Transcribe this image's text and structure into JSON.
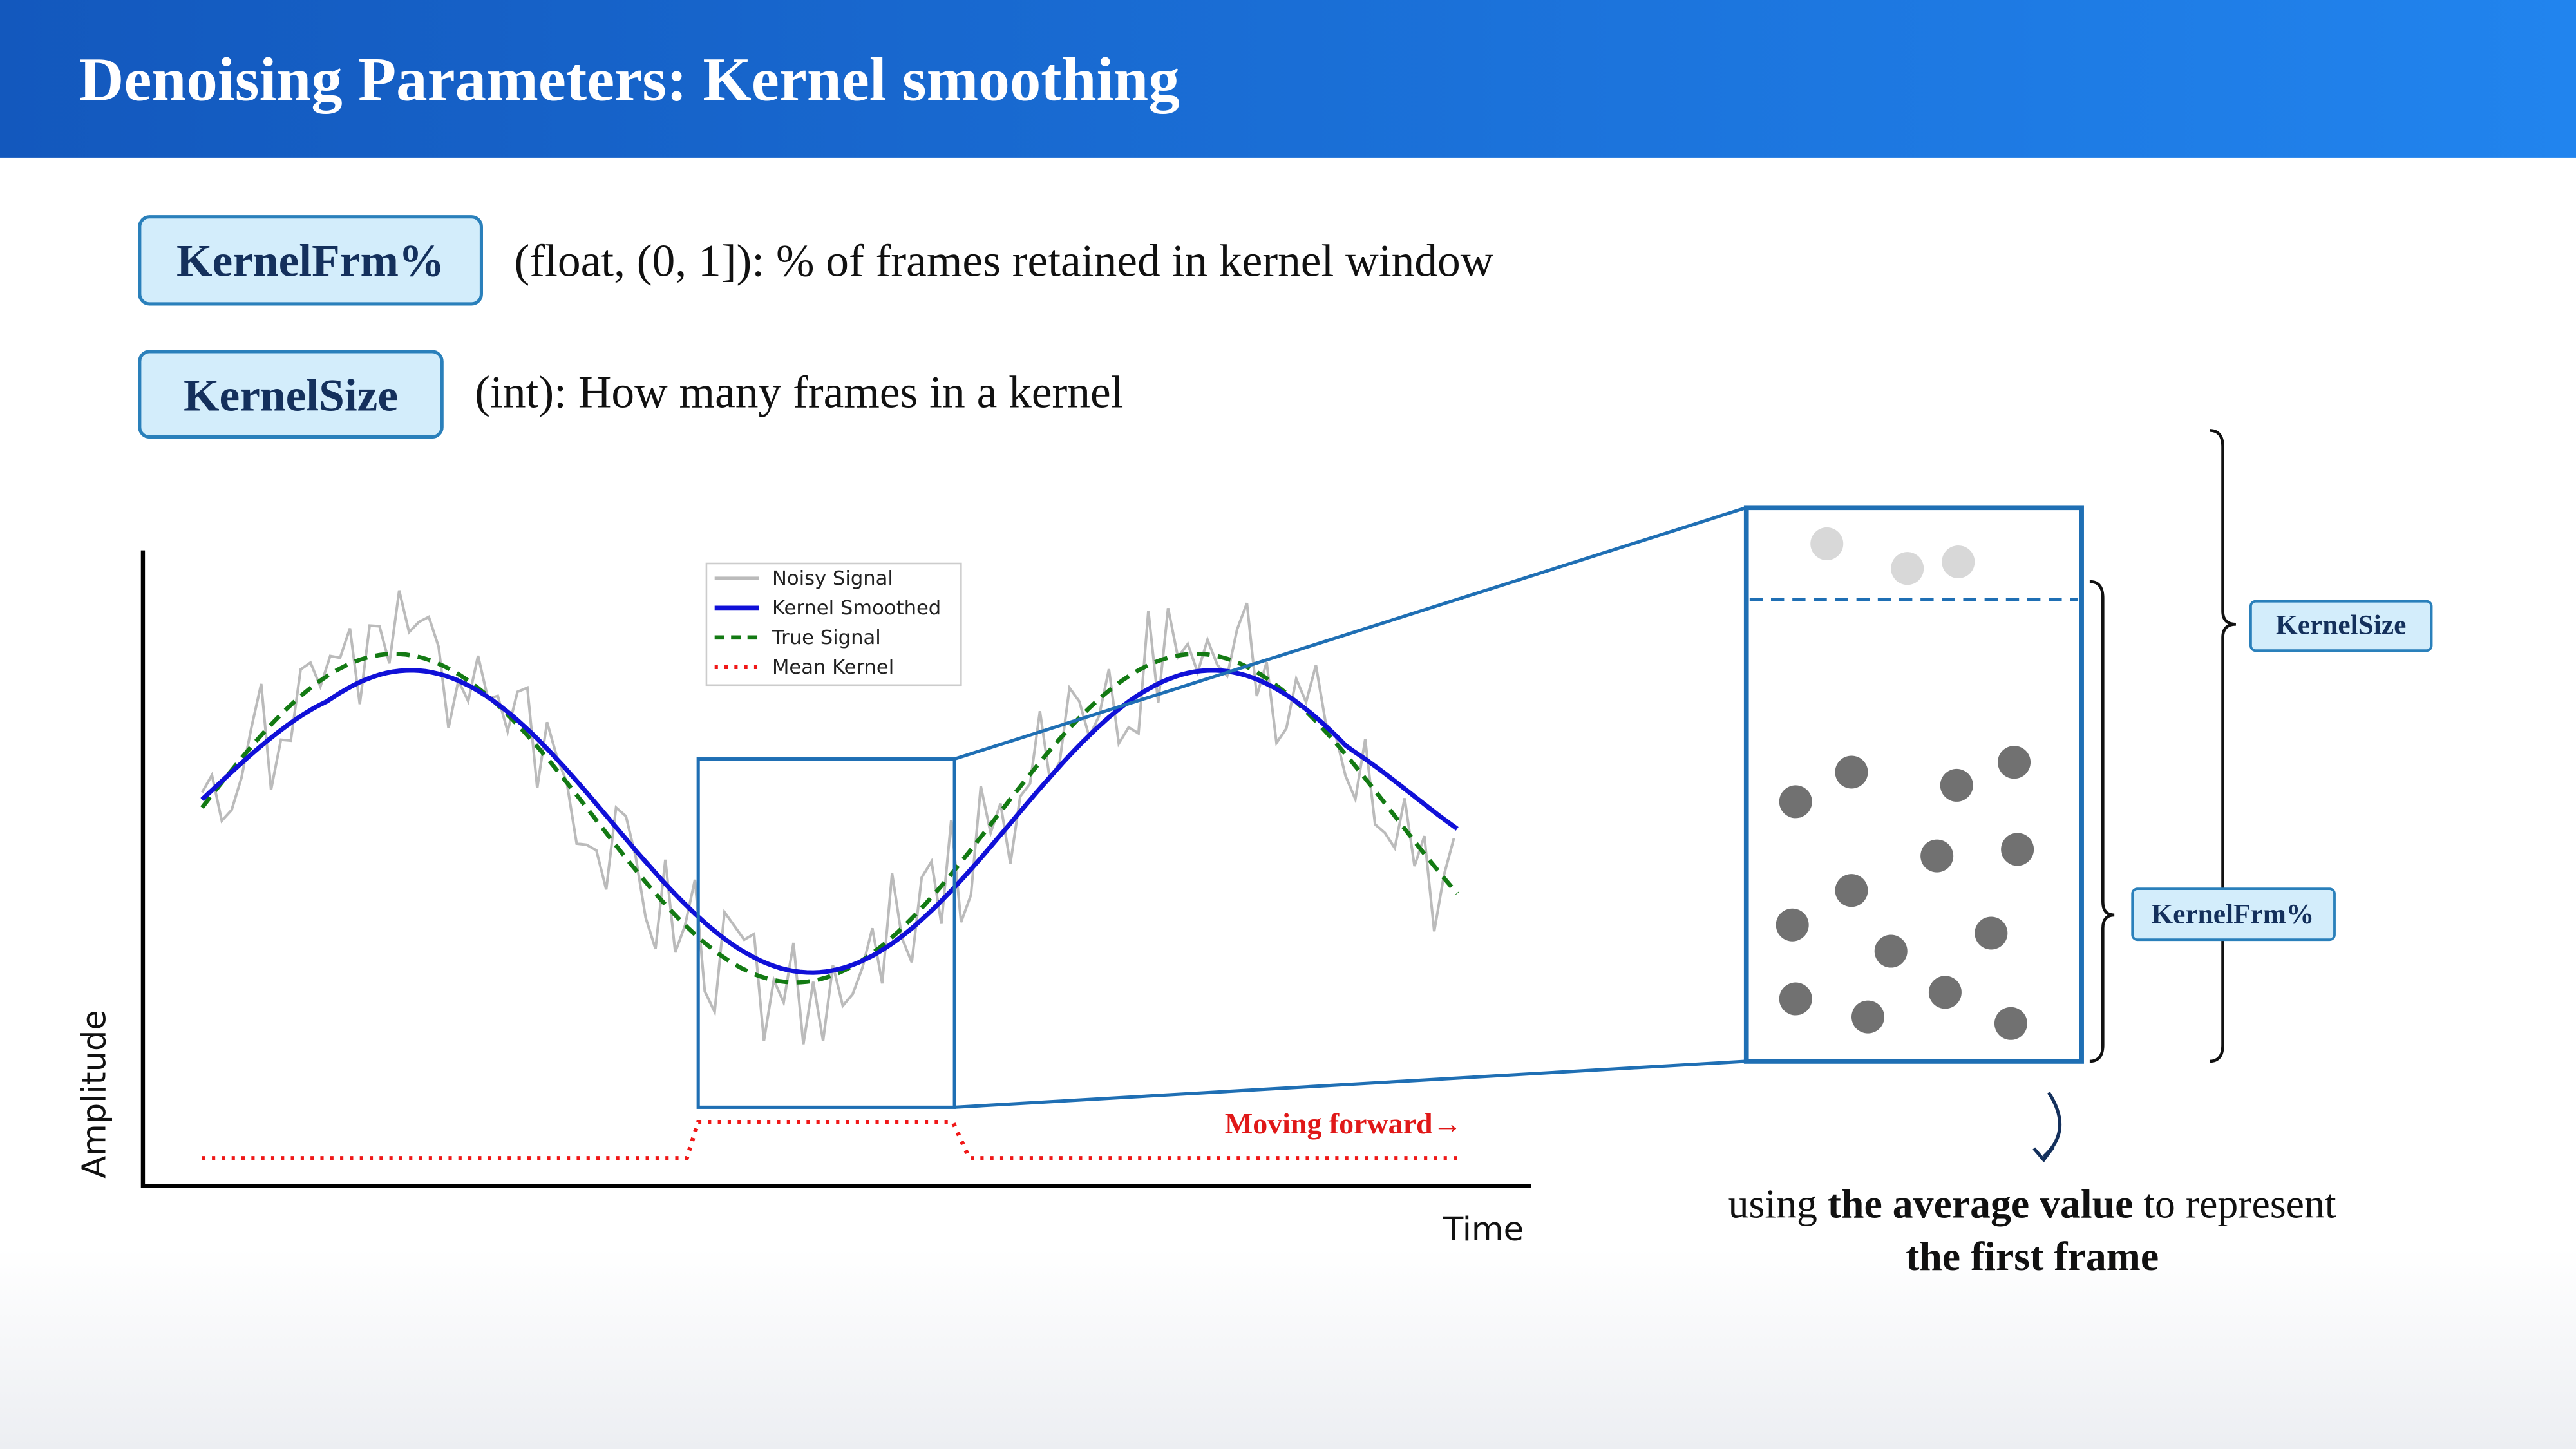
{
  "header": {
    "title": "Denoising Parameters: Kernel smoothing"
  },
  "params": [
    {
      "name": "KernelFrm%",
      "description": "(float, (0, 1]): % of frames retained in kernel window"
    },
    {
      "name": "KernelSize",
      "description": "(int): How many frames in a kernel"
    }
  ],
  "plot": {
    "x_label": "Time",
    "y_label": "Amplitude",
    "legend": [
      "Noisy Signal",
      "Kernel Smoothed",
      "True Signal",
      "Mean Kernel"
    ],
    "annotation": "Moving forward→"
  },
  "diagram": {
    "labels": [
      "KernelSize",
      "KernelFrm%"
    ]
  },
  "caption": {
    "parts": [
      "using",
      "the average value",
      "to represent",
      "the first frame"
    ]
  }
}
